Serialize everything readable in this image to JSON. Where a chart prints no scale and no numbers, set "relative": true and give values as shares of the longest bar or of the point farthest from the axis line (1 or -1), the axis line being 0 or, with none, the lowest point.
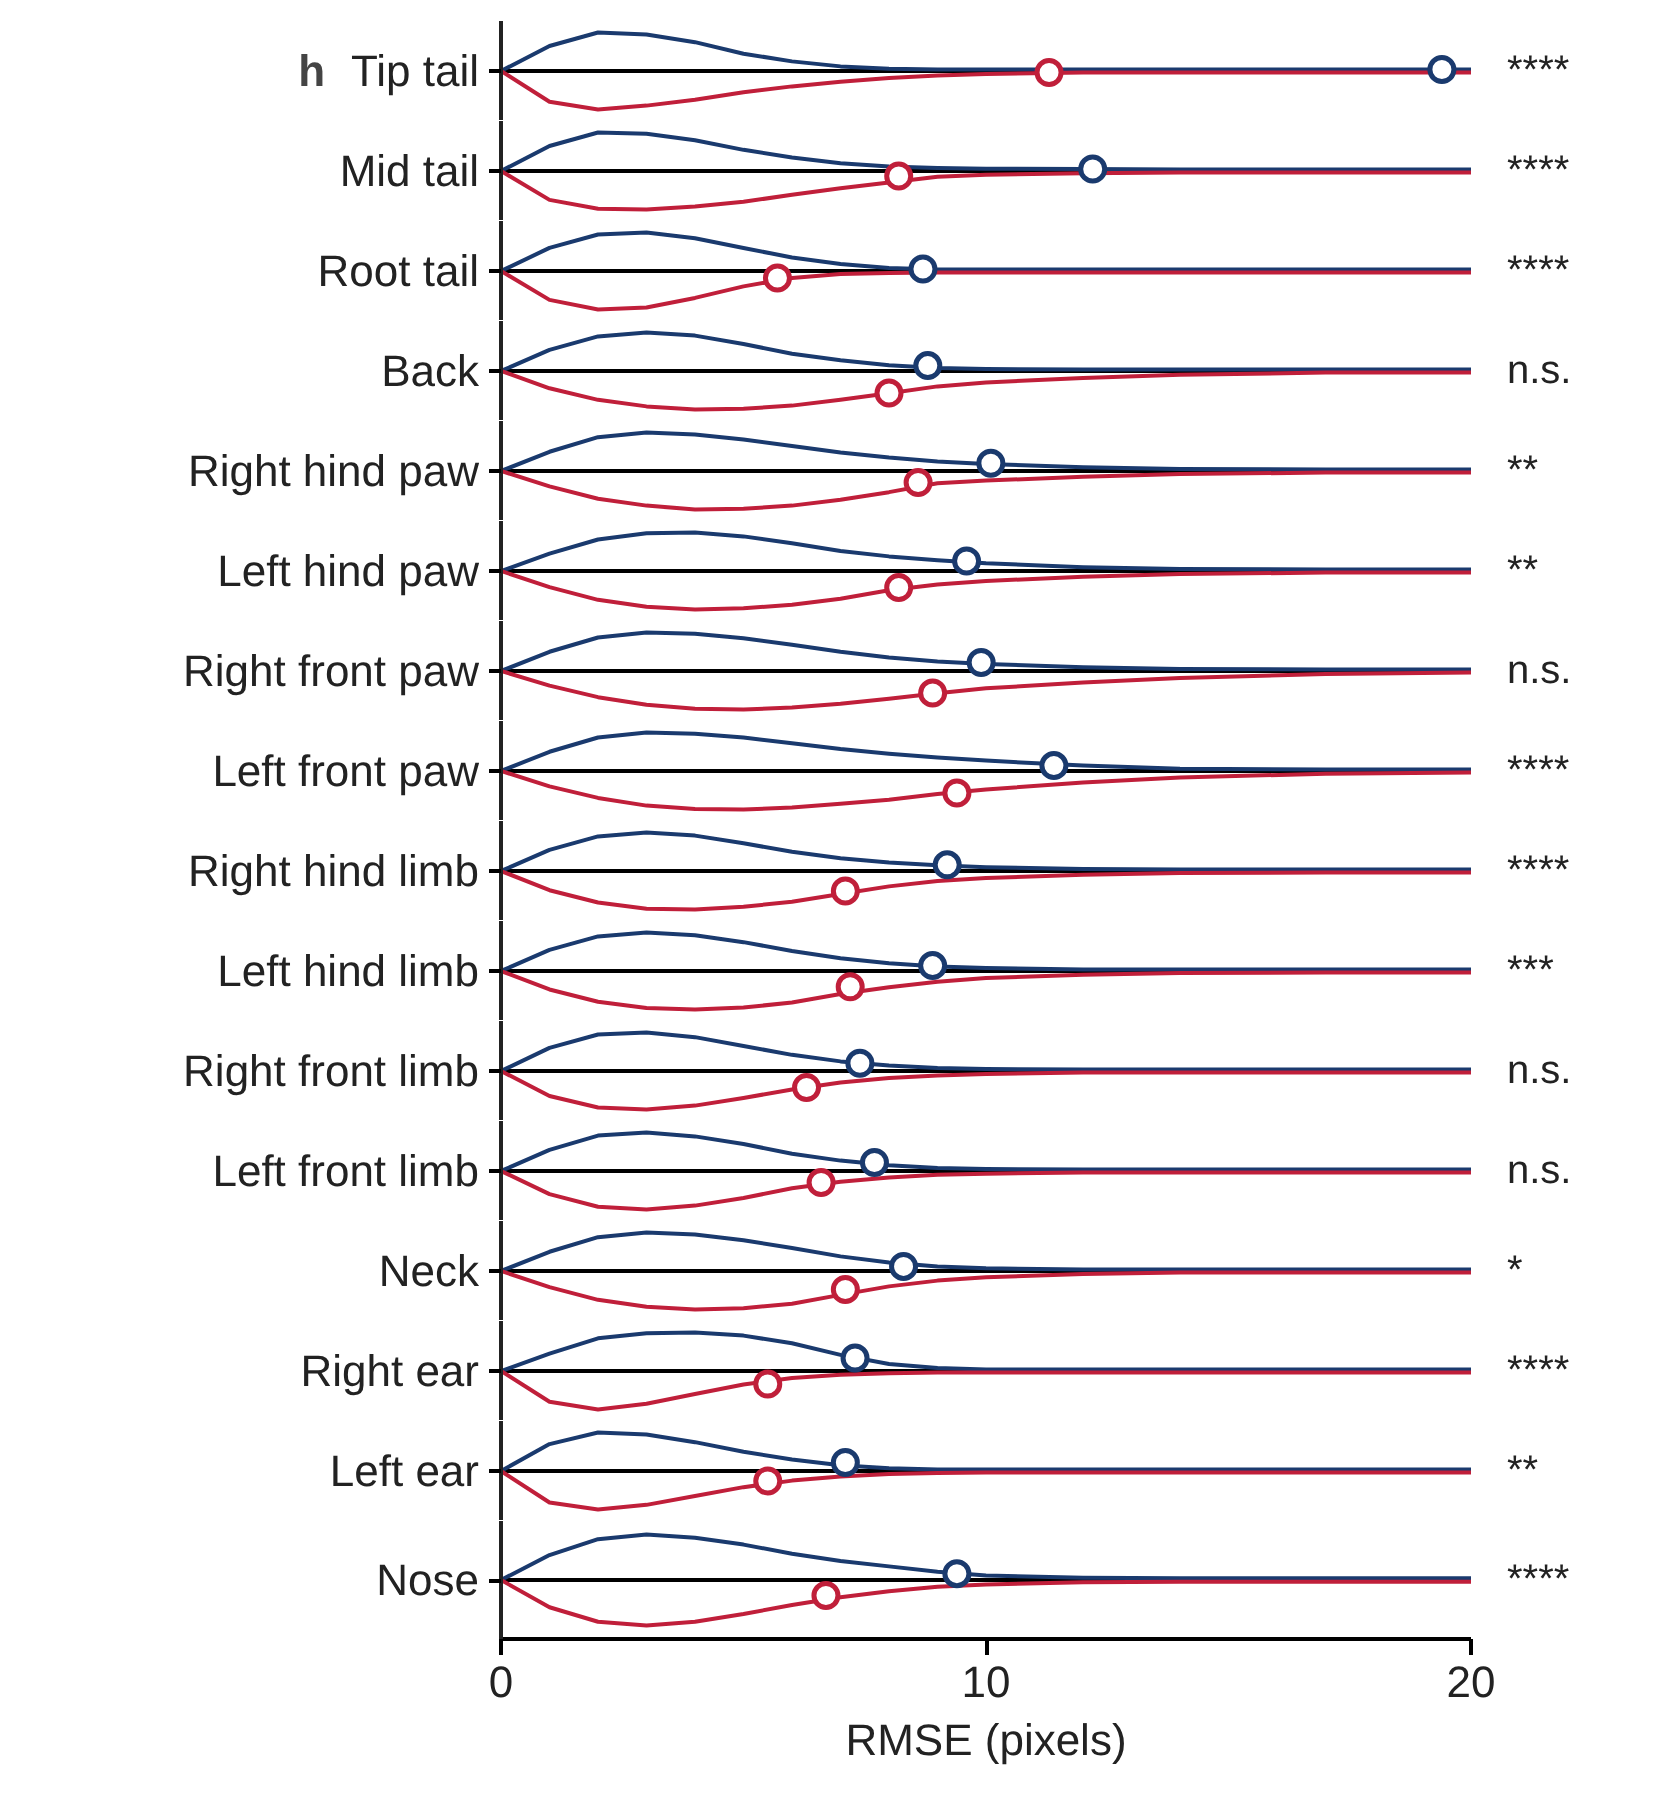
{
  "chart_data": [
    {
      "type": "line",
      "relative": true,
      "title": "h",
      "ylabel": "Tip tail",
      "annotations": [
        "****"
      ],
      "xlim": [
        0,
        20
      ],
      "tick_labels": false,
      "series": [
        {
          "type": "line",
          "color": "#1a3a6e",
          "x": [
            0,
            1,
            2,
            3,
            4,
            5,
            6,
            7,
            8,
            9,
            10,
            12,
            14,
            17,
            20
          ],
          "values": [
            0,
            0.65,
            1,
            0.95,
            0.75,
            0.45,
            0.25,
            0.12,
            0.06,
            0.04,
            0.04,
            0.04,
            0.04,
            0.04,
            0.04
          ]
        },
        {
          "type": "line",
          "color": "#c01f3a",
          "x": [
            0,
            1,
            2,
            3,
            4,
            5,
            6,
            7,
            8,
            9,
            10,
            12,
            14,
            17,
            20
          ],
          "values": [
            0,
            -0.8,
            -1,
            -0.9,
            -0.75,
            -0.55,
            -0.4,
            -0.28,
            -0.18,
            -0.12,
            -0.08,
            -0.04,
            -0.04,
            -0.04,
            -0.04
          ]
        },
        {
          "type": "scatter",
          "marker": "circle",
          "color": "#1a3a6e",
          "x": [
            19.4
          ],
          "values": [
            0.04
          ]
        },
        {
          "type": "scatter",
          "marker": "circle",
          "color": "#c01f3a",
          "x": [
            11.3
          ],
          "values": [
            -0.04
          ]
        }
      ]
    },
    {
      "type": "line",
      "relative": true,
      "ylabel": "Mid tail",
      "annotations": [
        "****"
      ],
      "xlim": [
        0,
        20
      ],
      "tick_labels": false,
      "series": [
        {
          "type": "line",
          "color": "#1a3a6e",
          "x": [
            0,
            1,
            2,
            3,
            4,
            5,
            6,
            7,
            8,
            9,
            10,
            12,
            14,
            17,
            20
          ],
          "values": [
            0,
            0.65,
            1,
            0.97,
            0.8,
            0.55,
            0.35,
            0.2,
            0.12,
            0.08,
            0.06,
            0.05,
            0.04,
            0.04,
            0.04
          ]
        },
        {
          "type": "line",
          "color": "#c01f3a",
          "x": [
            0,
            1,
            2,
            3,
            4,
            5,
            6,
            7,
            8,
            9,
            10,
            12,
            14,
            17,
            20
          ],
          "values": [
            0,
            -0.75,
            -0.98,
            -1,
            -0.92,
            -0.8,
            -0.62,
            -0.45,
            -0.3,
            -0.15,
            -0.1,
            -0.06,
            -0.04,
            -0.04,
            -0.04
          ]
        },
        {
          "type": "scatter",
          "marker": "circle",
          "color": "#1a3a6e",
          "x": [
            12.2
          ],
          "values": [
            0.05
          ]
        },
        {
          "type": "scatter",
          "marker": "circle",
          "color": "#c01f3a",
          "x": [
            8.2
          ],
          "values": [
            -0.13
          ]
        }
      ]
    },
    {
      "type": "line",
      "relative": true,
      "ylabel": "Root tail",
      "annotations": [
        "****"
      ],
      "xlim": [
        0,
        20
      ],
      "tick_labels": false,
      "series": [
        {
          "type": "line",
          "color": "#1a3a6e",
          "x": [
            0,
            1,
            2,
            3,
            4,
            5,
            6,
            7,
            8,
            9,
            10,
            12,
            14,
            17,
            20
          ],
          "values": [
            0,
            0.6,
            0.95,
            1,
            0.85,
            0.6,
            0.35,
            0.18,
            0.08,
            0.04,
            0.04,
            0.04,
            0.04,
            0.04,
            0.04
          ]
        },
        {
          "type": "line",
          "color": "#c01f3a",
          "x": [
            0,
            1,
            2,
            3,
            4,
            5,
            6,
            7,
            8,
            9,
            10,
            12,
            14,
            17,
            20
          ],
          "values": [
            0,
            -0.75,
            -1,
            -0.95,
            -0.7,
            -0.4,
            -0.18,
            -0.08,
            -0.05,
            -0.04,
            -0.04,
            -0.04,
            -0.04,
            -0.04,
            -0.04
          ]
        },
        {
          "type": "scatter",
          "marker": "circle",
          "color": "#1a3a6e",
          "x": [
            8.7
          ],
          "values": [
            0.05
          ]
        },
        {
          "type": "scatter",
          "marker": "circle",
          "color": "#c01f3a",
          "x": [
            5.7
          ],
          "values": [
            -0.18
          ]
        }
      ]
    },
    {
      "type": "line",
      "relative": true,
      "ylabel": "Back",
      "annotations": [
        "n.s."
      ],
      "xlim": [
        0,
        20
      ],
      "tick_labels": false,
      "series": [
        {
          "type": "line",
          "color": "#1a3a6e",
          "x": [
            0,
            1,
            2,
            3,
            4,
            5,
            6,
            7,
            8,
            9,
            10,
            12,
            14,
            17,
            20
          ],
          "values": [
            0,
            0.55,
            0.9,
            1,
            0.92,
            0.7,
            0.45,
            0.28,
            0.15,
            0.08,
            0.05,
            0.04,
            0.04,
            0.04,
            0.04
          ]
        },
        {
          "type": "line",
          "color": "#c01f3a",
          "x": [
            0,
            1,
            2,
            3,
            4,
            5,
            6,
            7,
            8,
            9,
            10,
            12,
            14,
            17,
            20
          ],
          "values": [
            0,
            -0.45,
            -0.75,
            -0.92,
            -1,
            -0.98,
            -0.9,
            -0.75,
            -0.58,
            -0.4,
            -0.3,
            -0.18,
            -0.1,
            -0.04,
            -0.04
          ]
        },
        {
          "type": "scatter",
          "marker": "circle",
          "color": "#1a3a6e",
          "x": [
            8.8
          ],
          "values": [
            0.14
          ]
        },
        {
          "type": "scatter",
          "marker": "circle",
          "color": "#c01f3a",
          "x": [
            8.0
          ],
          "values": [
            -0.57
          ]
        }
      ]
    },
    {
      "type": "line",
      "relative": true,
      "ylabel": "Right hind paw",
      "annotations": [
        "**"
      ],
      "xlim": [
        0,
        20
      ],
      "tick_labels": false,
      "series": [
        {
          "type": "line",
          "color": "#1a3a6e",
          "x": [
            0,
            1,
            2,
            3,
            4,
            5,
            6,
            7,
            8,
            9,
            10,
            12,
            14,
            17,
            20
          ],
          "values": [
            0,
            0.5,
            0.88,
            1,
            0.95,
            0.82,
            0.65,
            0.48,
            0.35,
            0.25,
            0.18,
            0.1,
            0.05,
            0.04,
            0.04
          ]
        },
        {
          "type": "line",
          "color": "#c01f3a",
          "x": [
            0,
            1,
            2,
            3,
            4,
            5,
            6,
            7,
            8,
            9,
            10,
            12,
            14,
            17,
            20
          ],
          "values": [
            0,
            -0.4,
            -0.72,
            -0.9,
            -1,
            -0.98,
            -0.9,
            -0.75,
            -0.55,
            -0.32,
            -0.25,
            -0.15,
            -0.08,
            -0.04,
            -0.04
          ]
        },
        {
          "type": "scatter",
          "marker": "circle",
          "color": "#1a3a6e",
          "x": [
            10.1
          ],
          "values": [
            0.2
          ]
        },
        {
          "type": "scatter",
          "marker": "circle",
          "color": "#c01f3a",
          "x": [
            8.6
          ],
          "values": [
            -0.3
          ]
        }
      ]
    },
    {
      "type": "line",
      "relative": true,
      "ylabel": "Left hind paw",
      "annotations": [
        "**"
      ],
      "xlim": [
        0,
        20
      ],
      "tick_labels": false,
      "series": [
        {
          "type": "line",
          "color": "#1a3a6e",
          "x": [
            0,
            1,
            2,
            3,
            4,
            5,
            6,
            7,
            8,
            9,
            10,
            12,
            14,
            17,
            20
          ],
          "values": [
            0,
            0.45,
            0.82,
            0.98,
            1,
            0.9,
            0.72,
            0.52,
            0.38,
            0.28,
            0.2,
            0.1,
            0.05,
            0.04,
            0.04
          ]
        },
        {
          "type": "line",
          "color": "#c01f3a",
          "x": [
            0,
            1,
            2,
            3,
            4,
            5,
            6,
            7,
            8,
            9,
            10,
            12,
            14,
            17,
            20
          ],
          "values": [
            0,
            -0.42,
            -0.75,
            -0.93,
            -1,
            -0.97,
            -0.88,
            -0.72,
            -0.5,
            -0.35,
            -0.26,
            -0.15,
            -0.08,
            -0.04,
            -0.04
          ]
        },
        {
          "type": "scatter",
          "marker": "circle",
          "color": "#1a3a6e",
          "x": [
            9.6
          ],
          "values": [
            0.26
          ]
        },
        {
          "type": "scatter",
          "marker": "circle",
          "color": "#c01f3a",
          "x": [
            8.2
          ],
          "values": [
            -0.43
          ]
        }
      ]
    },
    {
      "type": "line",
      "relative": true,
      "ylabel": "Right front paw",
      "annotations": [
        "n.s."
      ],
      "xlim": [
        0,
        20
      ],
      "tick_labels": false,
      "series": [
        {
          "type": "line",
          "color": "#1a3a6e",
          "x": [
            0,
            1,
            2,
            3,
            4,
            5,
            6,
            7,
            8,
            9,
            10,
            12,
            14,
            17,
            20
          ],
          "values": [
            0,
            0.5,
            0.87,
            1,
            0.97,
            0.85,
            0.68,
            0.5,
            0.35,
            0.25,
            0.18,
            0.1,
            0.05,
            0.04,
            0.04
          ]
        },
        {
          "type": "line",
          "color": "#c01f3a",
          "x": [
            0,
            1,
            2,
            3,
            4,
            5,
            6,
            7,
            8,
            9,
            10,
            12,
            14,
            17,
            20
          ],
          "values": [
            0,
            -0.38,
            -0.68,
            -0.88,
            -0.98,
            -1,
            -0.95,
            -0.85,
            -0.72,
            -0.58,
            -0.45,
            -0.3,
            -0.18,
            -0.08,
            -0.04
          ]
        },
        {
          "type": "scatter",
          "marker": "circle",
          "color": "#1a3a6e",
          "x": [
            9.9
          ],
          "values": [
            0.22
          ]
        },
        {
          "type": "scatter",
          "marker": "circle",
          "color": "#c01f3a",
          "x": [
            8.9
          ],
          "values": [
            -0.57
          ]
        }
      ]
    },
    {
      "type": "line",
      "relative": true,
      "ylabel": "Left front paw",
      "annotations": [
        "****"
      ],
      "xlim": [
        0,
        20
      ],
      "tick_labels": false,
      "series": [
        {
          "type": "line",
          "color": "#1a3a6e",
          "x": [
            0,
            1,
            2,
            3,
            4,
            5,
            6,
            7,
            8,
            9,
            10,
            12,
            14,
            17,
            20
          ],
          "values": [
            0,
            0.5,
            0.87,
            1,
            0.97,
            0.87,
            0.72,
            0.57,
            0.45,
            0.35,
            0.27,
            0.14,
            0.06,
            0.04,
            0.04
          ]
        },
        {
          "type": "line",
          "color": "#c01f3a",
          "x": [
            0,
            1,
            2,
            3,
            4,
            5,
            6,
            7,
            8,
            9,
            10,
            12,
            14,
            17,
            20
          ],
          "values": [
            0,
            -0.4,
            -0.7,
            -0.9,
            -0.99,
            -1,
            -0.95,
            -0.85,
            -0.75,
            -0.6,
            -0.48,
            -0.3,
            -0.17,
            -0.07,
            -0.04
          ]
        },
        {
          "type": "scatter",
          "marker": "circle",
          "color": "#1a3a6e",
          "x": [
            11.4
          ],
          "values": [
            0.14
          ]
        },
        {
          "type": "scatter",
          "marker": "circle",
          "color": "#c01f3a",
          "x": [
            9.4
          ],
          "values": [
            -0.57
          ]
        }
      ]
    },
    {
      "type": "line",
      "relative": true,
      "ylabel": "Right hind limb",
      "annotations": [
        "****"
      ],
      "xlim": [
        0,
        20
      ],
      "tick_labels": false,
      "series": [
        {
          "type": "line",
          "color": "#1a3a6e",
          "x": [
            0,
            1,
            2,
            3,
            4,
            5,
            6,
            7,
            8,
            9,
            10,
            12,
            14,
            17,
            20
          ],
          "values": [
            0,
            0.55,
            0.9,
            1,
            0.92,
            0.72,
            0.5,
            0.33,
            0.22,
            0.15,
            0.1,
            0.05,
            0.04,
            0.04,
            0.04
          ]
        },
        {
          "type": "line",
          "color": "#c01f3a",
          "x": [
            0,
            1,
            2,
            3,
            4,
            5,
            6,
            7,
            8,
            9,
            10,
            12,
            14,
            17,
            20
          ],
          "values": [
            0,
            -0.5,
            -0.82,
            -0.98,
            -1,
            -0.93,
            -0.8,
            -0.6,
            -0.4,
            -0.26,
            -0.18,
            -0.1,
            -0.05,
            -0.04,
            -0.04
          ]
        },
        {
          "type": "scatter",
          "marker": "circle",
          "color": "#1a3a6e",
          "x": [
            9.2
          ],
          "values": [
            0.16
          ]
        },
        {
          "type": "scatter",
          "marker": "circle",
          "color": "#c01f3a",
          "x": [
            7.1
          ],
          "values": [
            -0.52
          ]
        }
      ]
    },
    {
      "type": "line",
      "relative": true,
      "ylabel": "Left hind limb",
      "annotations": [
        "***"
      ],
      "xlim": [
        0,
        20
      ],
      "tick_labels": false,
      "series": [
        {
          "type": "line",
          "color": "#1a3a6e",
          "x": [
            0,
            1,
            2,
            3,
            4,
            5,
            6,
            7,
            8,
            9,
            10,
            12,
            14,
            17,
            20
          ],
          "values": [
            0,
            0.55,
            0.9,
            1,
            0.93,
            0.75,
            0.52,
            0.33,
            0.2,
            0.12,
            0.08,
            0.04,
            0.04,
            0.04,
            0.04
          ]
        },
        {
          "type": "line",
          "color": "#c01f3a",
          "x": [
            0,
            1,
            2,
            3,
            4,
            5,
            6,
            7,
            8,
            9,
            10,
            12,
            14,
            17,
            20
          ],
          "values": [
            0,
            -0.48,
            -0.8,
            -0.96,
            -1,
            -0.95,
            -0.82,
            -0.6,
            -0.42,
            -0.28,
            -0.18,
            -0.1,
            -0.05,
            -0.04,
            -0.04
          ]
        },
        {
          "type": "scatter",
          "marker": "circle",
          "color": "#1a3a6e",
          "x": [
            8.9
          ],
          "values": [
            0.14
          ]
        },
        {
          "type": "scatter",
          "marker": "circle",
          "color": "#c01f3a",
          "x": [
            7.2
          ],
          "values": [
            -0.41
          ]
        }
      ]
    },
    {
      "type": "line",
      "relative": true,
      "ylabel": "Right front limb",
      "annotations": [
        "n.s."
      ],
      "xlim": [
        0,
        20
      ],
      "tick_labels": false,
      "series": [
        {
          "type": "line",
          "color": "#1a3a6e",
          "x": [
            0,
            1,
            2,
            3,
            4,
            5,
            6,
            7,
            8,
            9,
            10,
            12,
            14,
            17,
            20
          ],
          "values": [
            0,
            0.6,
            0.95,
            1,
            0.88,
            0.65,
            0.42,
            0.25,
            0.14,
            0.08,
            0.05,
            0.04,
            0.04,
            0.04,
            0.04
          ]
        },
        {
          "type": "line",
          "color": "#c01f3a",
          "x": [
            0,
            1,
            2,
            3,
            4,
            5,
            6,
            7,
            8,
            9,
            10,
            12,
            14,
            17,
            20
          ],
          "values": [
            0,
            -0.65,
            -0.95,
            -1,
            -0.9,
            -0.7,
            -0.48,
            -0.3,
            -0.18,
            -0.12,
            -0.08,
            -0.04,
            -0.04,
            -0.04,
            -0.04
          ]
        },
        {
          "type": "scatter",
          "marker": "circle",
          "color": "#1a3a6e",
          "x": [
            7.4
          ],
          "values": [
            0.2
          ]
        },
        {
          "type": "scatter",
          "marker": "circle",
          "color": "#c01f3a",
          "x": [
            6.3
          ],
          "values": [
            -0.43
          ]
        }
      ]
    },
    {
      "type": "line",
      "relative": true,
      "ylabel": "Left front limb",
      "annotations": [
        "n.s."
      ],
      "xlim": [
        0,
        20
      ],
      "tick_labels": false,
      "series": [
        {
          "type": "line",
          "color": "#1a3a6e",
          "x": [
            0,
            1,
            2,
            3,
            4,
            5,
            6,
            7,
            8,
            9,
            10,
            12,
            14,
            17,
            20
          ],
          "values": [
            0,
            0.55,
            0.92,
            1,
            0.9,
            0.7,
            0.45,
            0.27,
            0.15,
            0.08,
            0.05,
            0.04,
            0.04,
            0.04,
            0.04
          ]
        },
        {
          "type": "line",
          "color": "#c01f3a",
          "x": [
            0,
            1,
            2,
            3,
            4,
            5,
            6,
            7,
            8,
            9,
            10,
            12,
            14,
            17,
            20
          ],
          "values": [
            0,
            -0.6,
            -0.93,
            -1,
            -0.9,
            -0.7,
            -0.45,
            -0.28,
            -0.17,
            -0.1,
            -0.07,
            -0.04,
            -0.04,
            -0.04,
            -0.04
          ]
        },
        {
          "type": "scatter",
          "marker": "circle",
          "color": "#1a3a6e",
          "x": [
            7.7
          ],
          "values": [
            0.22
          ]
        },
        {
          "type": "scatter",
          "marker": "circle",
          "color": "#c01f3a",
          "x": [
            6.6
          ],
          "values": [
            -0.3
          ]
        }
      ]
    },
    {
      "type": "line",
      "relative": true,
      "ylabel": "Neck",
      "annotations": [
        "*"
      ],
      "xlim": [
        0,
        20
      ],
      "tick_labels": false,
      "series": [
        {
          "type": "line",
          "color": "#1a3a6e",
          "x": [
            0,
            1,
            2,
            3,
            4,
            5,
            6,
            7,
            8,
            9,
            10,
            12,
            14,
            17,
            20
          ],
          "values": [
            0,
            0.5,
            0.88,
            1,
            0.95,
            0.8,
            0.6,
            0.38,
            0.22,
            0.12,
            0.07,
            0.04,
            0.04,
            0.04,
            0.04
          ]
        },
        {
          "type": "line",
          "color": "#c01f3a",
          "x": [
            0,
            1,
            2,
            3,
            4,
            5,
            6,
            7,
            8,
            9,
            10,
            12,
            14,
            17,
            20
          ],
          "values": [
            0,
            -0.42,
            -0.75,
            -0.93,
            -1,
            -0.97,
            -0.85,
            -0.62,
            -0.4,
            -0.25,
            -0.16,
            -0.08,
            -0.04,
            -0.04,
            -0.04
          ]
        },
        {
          "type": "scatter",
          "marker": "circle",
          "color": "#1a3a6e",
          "x": [
            8.3
          ],
          "values": [
            0.12
          ]
        },
        {
          "type": "scatter",
          "marker": "circle",
          "color": "#c01f3a",
          "x": [
            7.1
          ],
          "values": [
            -0.48
          ]
        }
      ]
    },
    {
      "type": "line",
      "relative": true,
      "ylabel": "Right ear",
      "annotations": [
        "****"
      ],
      "xlim": [
        0,
        20
      ],
      "tick_labels": false,
      "series": [
        {
          "type": "line",
          "color": "#1a3a6e",
          "x": [
            0,
            1,
            2,
            3,
            4,
            5,
            6,
            7,
            8,
            9,
            10,
            12,
            14,
            17,
            20
          ],
          "values": [
            0,
            0.45,
            0.85,
            0.98,
            1,
            0.92,
            0.72,
            0.42,
            0.18,
            0.08,
            0.04,
            0.04,
            0.04,
            0.04,
            0.04
          ]
        },
        {
          "type": "line",
          "color": "#c01f3a",
          "x": [
            0,
            1,
            2,
            3,
            4,
            5,
            6,
            7,
            8,
            9,
            10,
            12,
            14,
            17,
            20
          ],
          "values": [
            0,
            -0.8,
            -1,
            -0.85,
            -0.6,
            -0.35,
            -0.18,
            -0.1,
            -0.06,
            -0.04,
            -0.04,
            -0.04,
            -0.04,
            -0.04,
            -0.04
          ]
        },
        {
          "type": "scatter",
          "marker": "circle",
          "color": "#1a3a6e",
          "x": [
            7.3
          ],
          "values": [
            0.34
          ]
        },
        {
          "type": "scatter",
          "marker": "circle",
          "color": "#c01f3a",
          "x": [
            5.5
          ],
          "values": [
            -0.34
          ]
        }
      ]
    },
    {
      "type": "line",
      "relative": true,
      "ylabel": "Left ear",
      "annotations": [
        "**"
      ],
      "xlim": [
        0,
        20
      ],
      "tick_labels": false,
      "series": [
        {
          "type": "line",
          "color": "#1a3a6e",
          "x": [
            0,
            1,
            2,
            3,
            4,
            5,
            6,
            7,
            8,
            9,
            10,
            12,
            14,
            17,
            20
          ],
          "values": [
            0,
            0.7,
            1,
            0.95,
            0.75,
            0.5,
            0.3,
            0.15,
            0.07,
            0.04,
            0.04,
            0.04,
            0.04,
            0.04,
            0.04
          ]
        },
        {
          "type": "line",
          "color": "#c01f3a",
          "x": [
            0,
            1,
            2,
            3,
            4,
            5,
            6,
            7,
            8,
            9,
            10,
            12,
            14,
            17,
            20
          ],
          "values": [
            0,
            -0.82,
            -1,
            -0.88,
            -0.65,
            -0.42,
            -0.25,
            -0.14,
            -0.08,
            -0.05,
            -0.04,
            -0.04,
            -0.04,
            -0.04,
            -0.04
          ]
        },
        {
          "type": "scatter",
          "marker": "circle",
          "color": "#1a3a6e",
          "x": [
            7.1
          ],
          "values": [
            0.22
          ]
        },
        {
          "type": "scatter",
          "marker": "circle",
          "color": "#c01f3a",
          "x": [
            5.5
          ],
          "values": [
            -0.26
          ]
        }
      ]
    },
    {
      "type": "line",
      "relative": true,
      "ylabel": "Nose",
      "annotations": [
        "****"
      ],
      "xlim": [
        0,
        20
      ],
      "xticks": [
        0,
        10,
        20
      ],
      "xlabel": "RMSE (pixels)",
      "tick_labels": "x",
      "series": [
        {
          "type": "line",
          "color": "#1a3a6e",
          "x": [
            0,
            1,
            2,
            3,
            4,
            5,
            6,
            7,
            8,
            9,
            10,
            12,
            14,
            17,
            20
          ],
          "values": [
            0,
            0.55,
            0.9,
            1,
            0.93,
            0.78,
            0.58,
            0.42,
            0.3,
            0.18,
            0.1,
            0.05,
            0.04,
            0.04,
            0.04
          ]
        },
        {
          "type": "line",
          "color": "#c01f3a",
          "x": [
            0,
            1,
            2,
            3,
            4,
            5,
            6,
            7,
            8,
            9,
            10,
            12,
            14,
            17,
            20
          ],
          "values": [
            0,
            -0.6,
            -0.92,
            -1,
            -0.92,
            -0.75,
            -0.55,
            -0.38,
            -0.25,
            -0.15,
            -0.1,
            -0.05,
            -0.04,
            -0.04,
            -0.04
          ]
        },
        {
          "type": "scatter",
          "marker": "circle",
          "color": "#1a3a6e",
          "x": [
            9.4
          ],
          "values": [
            0.14
          ]
        },
        {
          "type": "scatter",
          "marker": "circle",
          "color": "#c01f3a",
          "x": [
            6.7
          ],
          "values": [
            -0.34
          ]
        }
      ]
    }
  ]
}
